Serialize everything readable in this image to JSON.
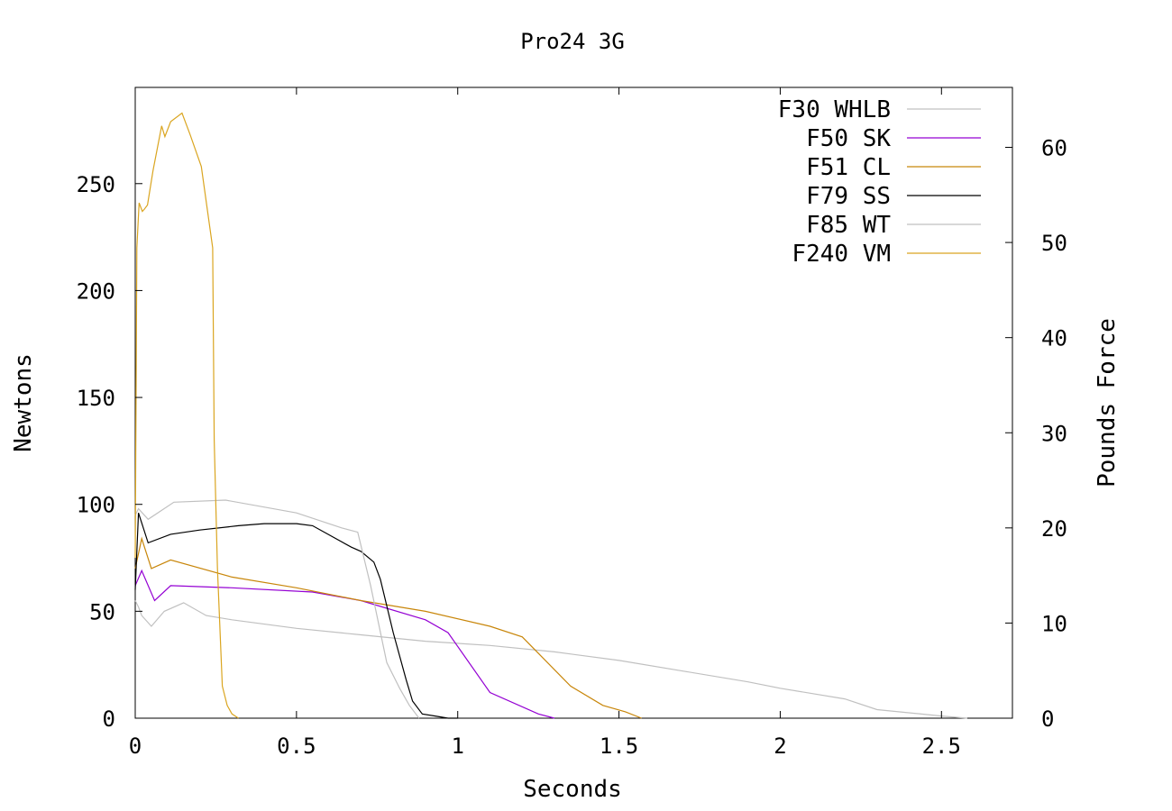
{
  "chart_data": {
    "type": "line",
    "title": "Pro24 3G",
    "xlabel": "Seconds",
    "ylabel": "Newtons",
    "y2label": "Pounds Force",
    "xlim": [
      0,
      2.72
    ],
    "ylim": [
      0,
      295
    ],
    "y2lim": [
      0,
      66.3
    ],
    "xticks": [
      0,
      0.5,
      1,
      1.5,
      2,
      2.5
    ],
    "xtick_labels": [
      "0",
      "0.5",
      "1",
      "1.5",
      "2",
      "2.5"
    ],
    "yticks": [
      0,
      50,
      100,
      150,
      200,
      250
    ],
    "ytick_labels": [
      "0",
      "50",
      "100",
      "150",
      "200",
      "250"
    ],
    "y2ticks": [
      0,
      10,
      20,
      30,
      40,
      50,
      60
    ],
    "y2tick_labels": [
      "0",
      "10",
      "20",
      "30",
      "40",
      "50",
      "60"
    ],
    "grid": false,
    "legend_position": "top-right",
    "series": [
      {
        "name": "F30 WHLB",
        "color": "#c0c0c0",
        "x": [
          0,
          0.01,
          0.02,
          0.05,
          0.09,
          0.15,
          0.22,
          0.3,
          0.5,
          0.7,
          0.9,
          1.1,
          1.3,
          1.5,
          1.7,
          1.9,
          2.0,
          2.2,
          2.3,
          2.5,
          2.58
        ],
        "y": [
          55,
          52,
          48,
          43,
          50,
          54,
          48,
          46,
          42,
          39,
          36,
          34,
          31,
          27,
          22,
          17,
          14,
          9,
          4,
          1,
          0
        ]
      },
      {
        "name": "F50 SK",
        "color": "#9400d3",
        "x": [
          0,
          0.02,
          0.06,
          0.11,
          0.3,
          0.55,
          0.7,
          0.9,
          0.97,
          1.1,
          1.25,
          1.3
        ],
        "y": [
          62,
          69,
          55,
          62,
          61,
          59,
          55,
          46,
          40,
          12,
          2,
          0
        ]
      },
      {
        "name": "F51 CL",
        "color": "#c8860a",
        "x": [
          0,
          0.02,
          0.05,
          0.11,
          0.3,
          0.5,
          0.7,
          0.9,
          1.1,
          1.2,
          1.35,
          1.45,
          1.52,
          1.57
        ],
        "y": [
          70,
          84,
          70,
          74,
          66,
          61,
          55,
          50,
          43,
          38,
          15,
          6,
          3,
          0
        ]
      },
      {
        "name": "F79 SS",
        "color": "#000000",
        "x": [
          0,
          0.01,
          0.04,
          0.11,
          0.2,
          0.32,
          0.4,
          0.5,
          0.55,
          0.67,
          0.7,
          0.74,
          0.76,
          0.8,
          0.84,
          0.86,
          0.89,
          0.93,
          0.97,
          1.0
        ],
        "y": [
          60,
          96,
          82,
          86,
          88,
          90,
          91,
          91,
          90,
          80,
          78,
          73,
          65,
          40,
          18,
          8,
          2,
          1,
          0,
          0
        ]
      },
      {
        "name": "F85 WT",
        "color": "#c0c0c0",
        "x": [
          0,
          0.01,
          0.04,
          0.12,
          0.28,
          0.5,
          0.64,
          0.69,
          0.73,
          0.78,
          0.82,
          0.85,
          0.88
        ],
        "y": [
          95,
          98,
          93,
          101,
          102,
          96,
          89,
          87,
          62,
          26,
          14,
          6,
          0
        ]
      },
      {
        "name": "F240 VM",
        "color": "#daa520",
        "x": [
          0,
          0.005,
          0.012,
          0.022,
          0.028,
          0.038,
          0.055,
          0.082,
          0.092,
          0.11,
          0.145,
          0.17,
          0.205,
          0.24,
          0.245,
          0.255,
          0.27,
          0.285,
          0.3,
          0.32
        ],
        "y": [
          75,
          220,
          241,
          237,
          238,
          240,
          256,
          277,
          272,
          279,
          283,
          273,
          258,
          220,
          130,
          70,
          15,
          6,
          2,
          0
        ]
      }
    ]
  }
}
